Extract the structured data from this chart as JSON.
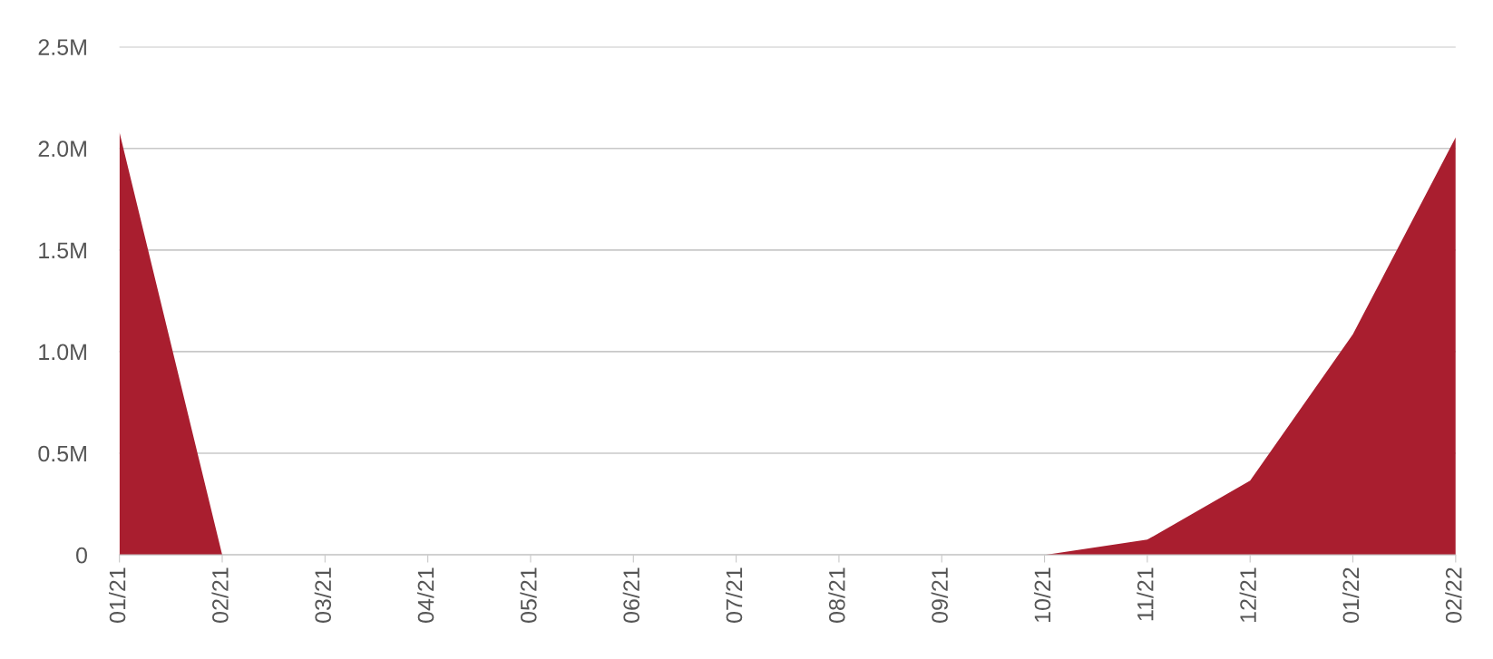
{
  "chart_data": {
    "type": "area",
    "categories": [
      "01/21",
      "02/21",
      "03/21",
      "04/21",
      "05/21",
      "06/21",
      "07/21",
      "08/21",
      "09/21",
      "10/21",
      "11/21",
      "12/21",
      "01/22",
      "02/22"
    ],
    "series": [
      {
        "color": "#a91e2f",
        "values": [
          2080000,
          0,
          0,
          0,
          0,
          0,
          0,
          0,
          0,
          0,
          75000,
          365000,
          1085000,
          2055000
        ]
      }
    ],
    "ylim": [
      0,
      2500000
    ],
    "yticks": [
      {
        "value": 0,
        "label": "0"
      },
      {
        "value": 500000,
        "label": "0.5M"
      },
      {
        "value": 1000000,
        "label": "1.0M"
      },
      {
        "value": 1500000,
        "label": "1.5M"
      },
      {
        "value": 2000000,
        "label": "2.0M"
      },
      {
        "value": 2500000,
        "label": "2.5M"
      }
    ],
    "grid": "y"
  }
}
